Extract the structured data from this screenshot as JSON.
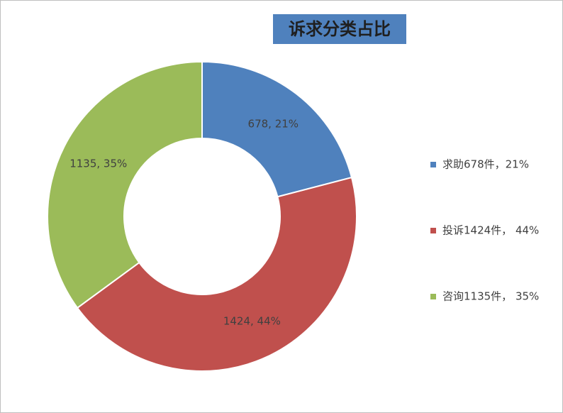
{
  "chart_data": {
    "type": "donut",
    "title": "诉求分类占比",
    "categories": [
      "求助678件，21%",
      "投诉1424件， 44%",
      "咨询1135件， 35%"
    ],
    "values": [
      678,
      1424,
      1135
    ],
    "value_labels": [
      "678, 21%",
      "1424, 44%",
      "1135, 35%"
    ],
    "colors": [
      "#4f81bd",
      "#c0504d",
      "#9bbb59"
    ],
    "legend": "right"
  }
}
